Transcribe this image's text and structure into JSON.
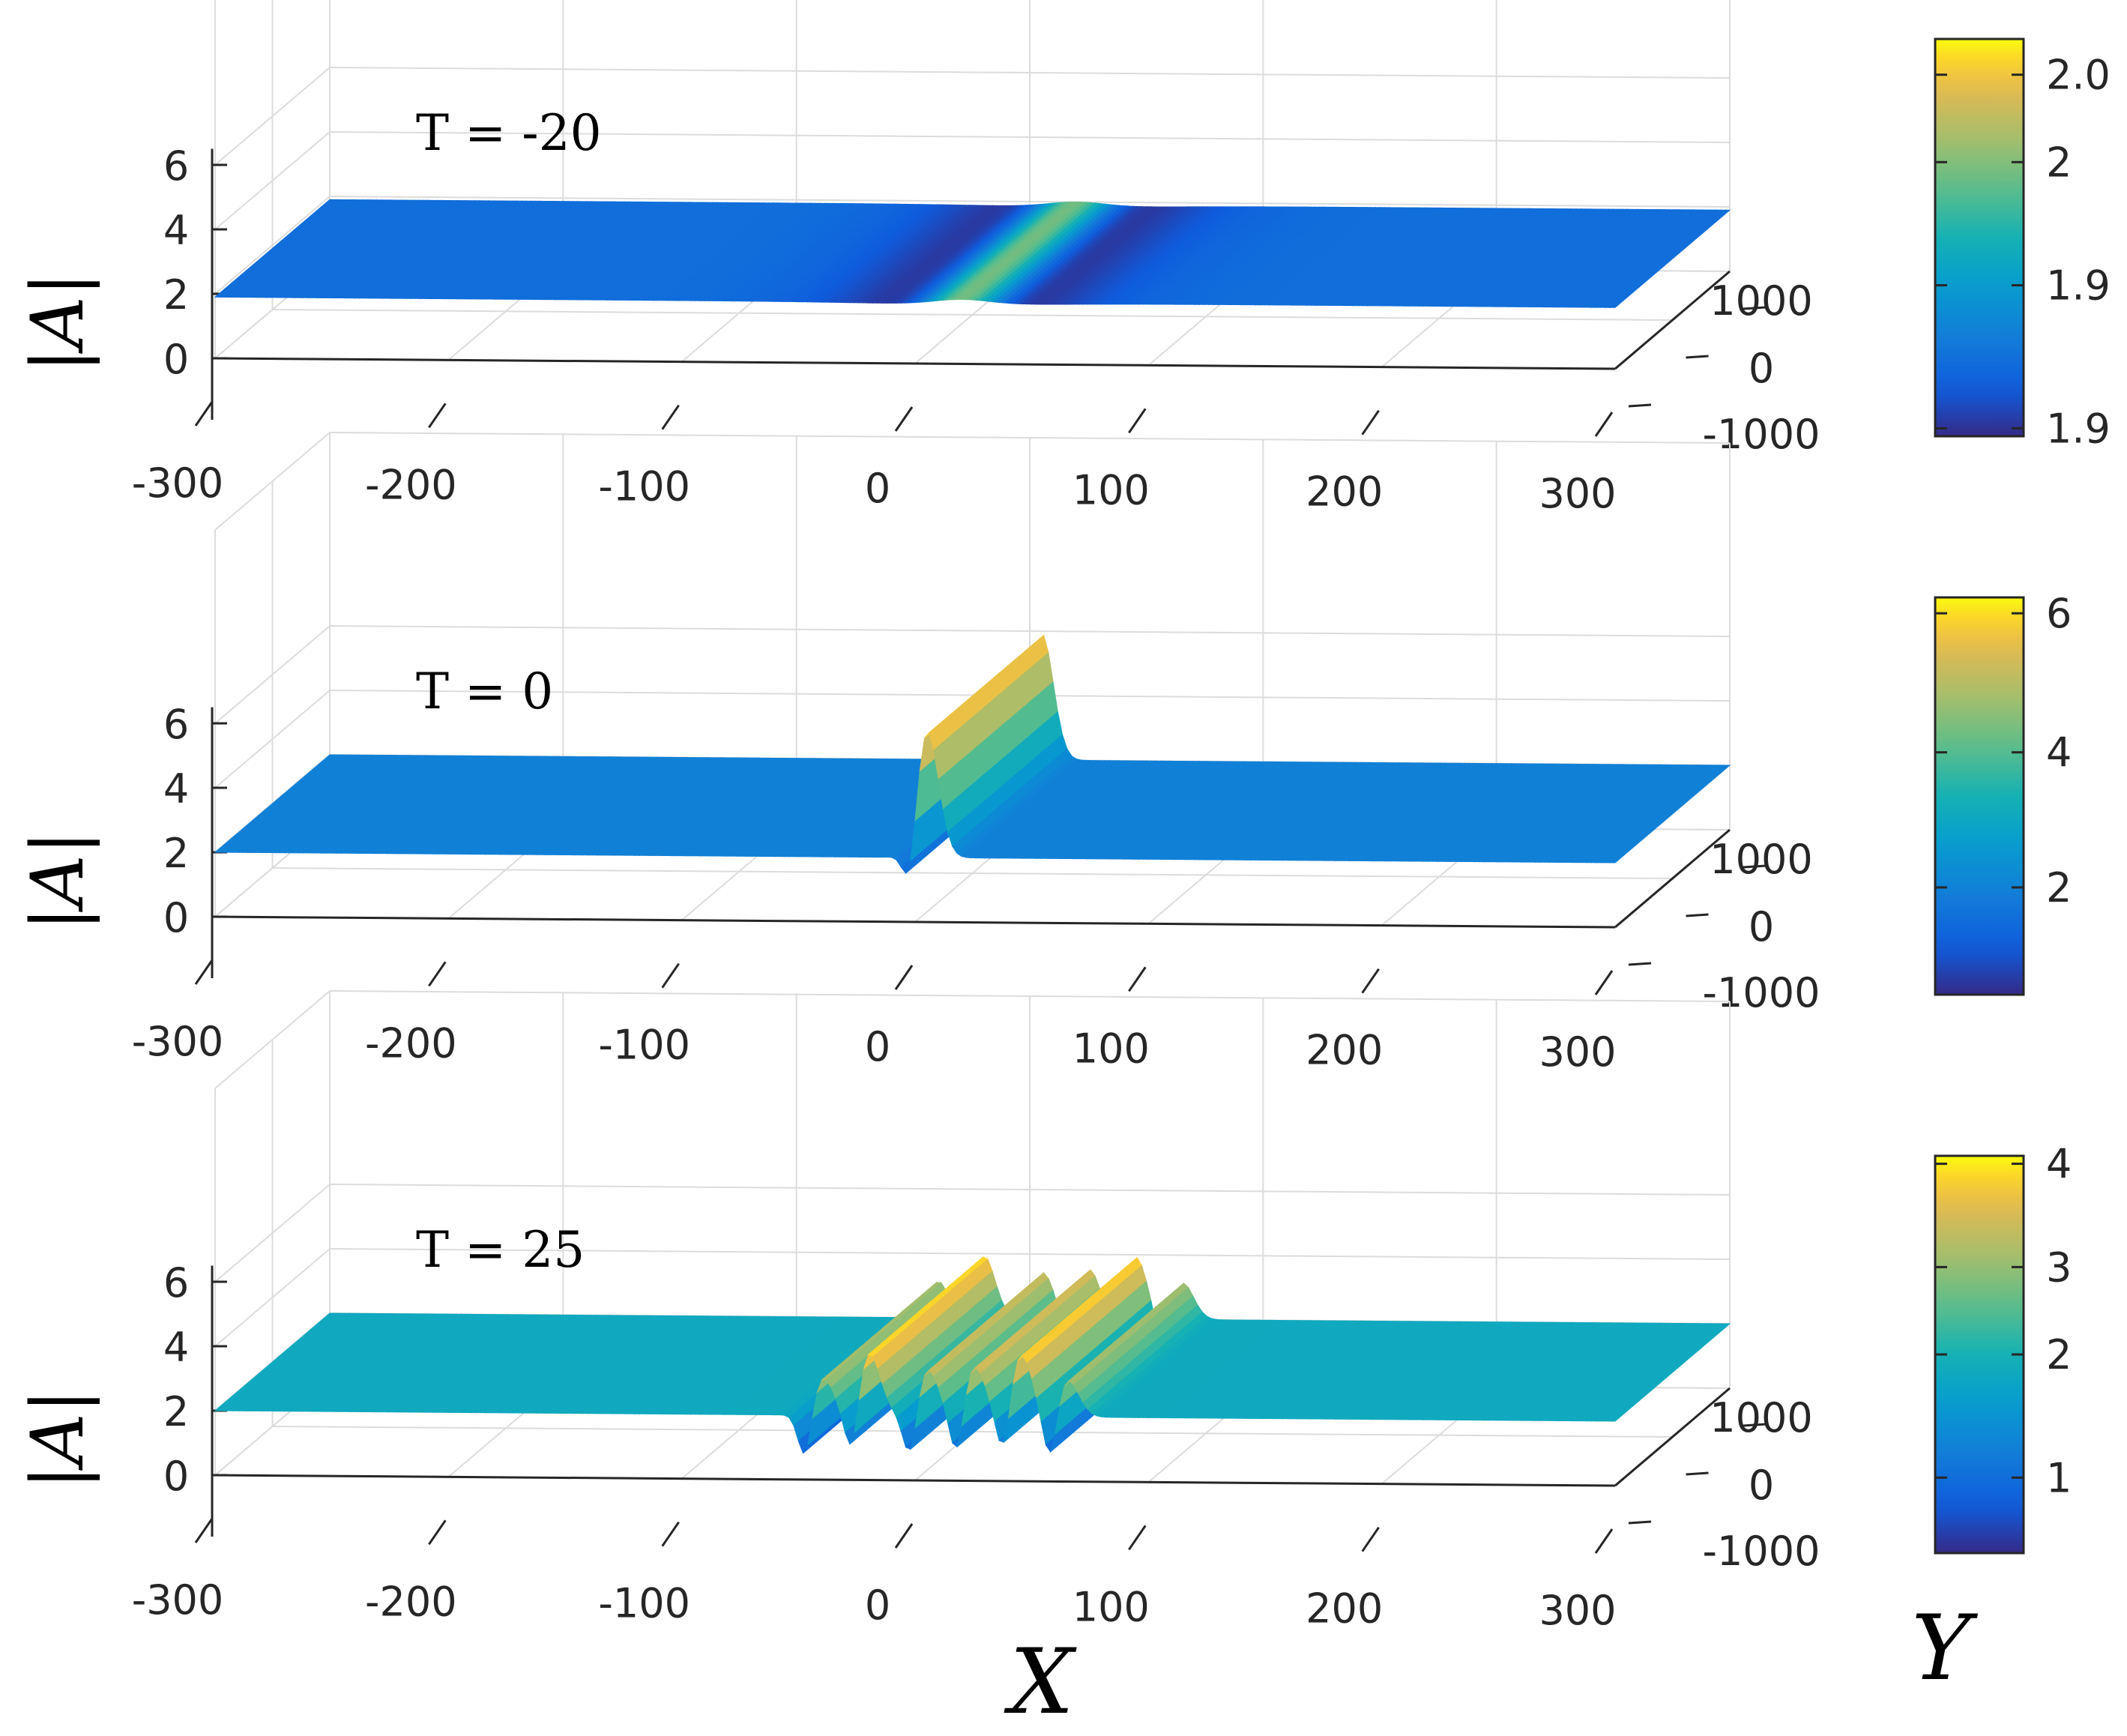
{
  "chart_data": [
    {
      "type": "surface",
      "title": "T = -20",
      "zlabel": "|A|",
      "x_ticks": [
        "-300",
        "-200",
        "-100",
        "0",
        "100",
        "200",
        "300"
      ],
      "y_ticks": [
        "-1000",
        "0",
        "1000"
      ],
      "z_ticks": [
        "0",
        "2",
        "4",
        "6"
      ],
      "xlim": [
        -300,
        300
      ],
      "ylim": [
        -1000,
        1000
      ],
      "zlim": [
        0,
        6
      ],
      "background_level": 1.9,
      "peaks": [
        {
          "x": 20,
          "height": 2.05
        }
      ],
      "colorbar": {
        "ticks": [
          "1.9",
          "1.9",
          "2",
          "2.0"
        ],
        "tick_positions": [
          0.02,
          0.38,
          0.69,
          0.91
        ],
        "min": 1.86,
        "max": 2.07
      }
    },
    {
      "type": "surface",
      "title": "T = 0",
      "zlabel": "|A|",
      "x_ticks": [
        "-300",
        "-200",
        "-100",
        "0",
        "100",
        "200",
        "300"
      ],
      "y_ticks": [
        "-1000",
        "0",
        "1000"
      ],
      "z_ticks": [
        "0",
        "2",
        "4",
        "6"
      ],
      "xlim": [
        -300,
        300
      ],
      "ylim": [
        -1000,
        1000
      ],
      "zlim": [
        0,
        6
      ],
      "background_level": 2,
      "peaks": [
        {
          "x": 5,
          "height": 6
        }
      ],
      "colorbar": {
        "ticks": [
          "2",
          "4",
          "6"
        ],
        "tick_positions": [
          0.27,
          0.61,
          0.96
        ],
        "min": 0.5,
        "max": 6.2
      }
    },
    {
      "type": "surface",
      "title": "T = 25",
      "zlabel": "|A|",
      "xlabel": "X",
      "ylabel": "Y",
      "x_ticks": [
        "-300",
        "-200",
        "-100",
        "0",
        "100",
        "200",
        "300"
      ],
      "y_ticks": [
        "-1000",
        "0",
        "1000"
      ],
      "z_ticks": [
        "0",
        "2",
        "4",
        "6"
      ],
      "xlim": [
        -300,
        300
      ],
      "ylim": [
        -1000,
        1000
      ],
      "zlim": [
        0,
        6
      ],
      "background_level": 2,
      "peaks": [
        {
          "x": -40,
          "height": 3.2
        },
        {
          "x": -20,
          "height": 4
        },
        {
          "x": 5,
          "height": 3.5
        },
        {
          "x": 25,
          "height": 3.6
        },
        {
          "x": 45,
          "height": 4
        },
        {
          "x": 65,
          "height": 3.2
        }
      ],
      "colorbar": {
        "ticks": [
          "1",
          "2",
          "3",
          "4"
        ],
        "tick_positions": [
          0.19,
          0.5,
          0.72,
          0.98
        ],
        "min": 0.3,
        "max": 4.05
      }
    }
  ]
}
